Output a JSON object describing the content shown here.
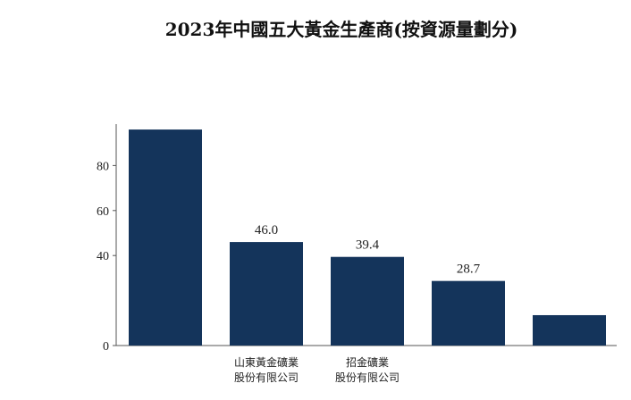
{
  "chart_data": {
    "type": "bar",
    "title": "2023年中國五大黃金生產商(按資源量劃分)",
    "xlabel": "",
    "ylabel": "",
    "ylim": [
      0,
      100
    ],
    "yticks": [
      0,
      40,
      60,
      80
    ],
    "categories": [
      [
        ""
      ],
      [
        "山東黃金礦業",
        "股份有限公司"
      ],
      [
        "招金礦業",
        "股份有限公司"
      ],
      [
        ""
      ],
      [
        ""
      ]
    ],
    "values": [
      96,
      46.0,
      39.4,
      28.7,
      13.5
    ],
    "data_labels": [
      "",
      "46.0",
      "39.4",
      "28.7",
      ""
    ],
    "colors": {
      "bar": "#14345b",
      "axis": "#555555",
      "text": "#222222"
    },
    "grid": false,
    "legend": "none"
  }
}
